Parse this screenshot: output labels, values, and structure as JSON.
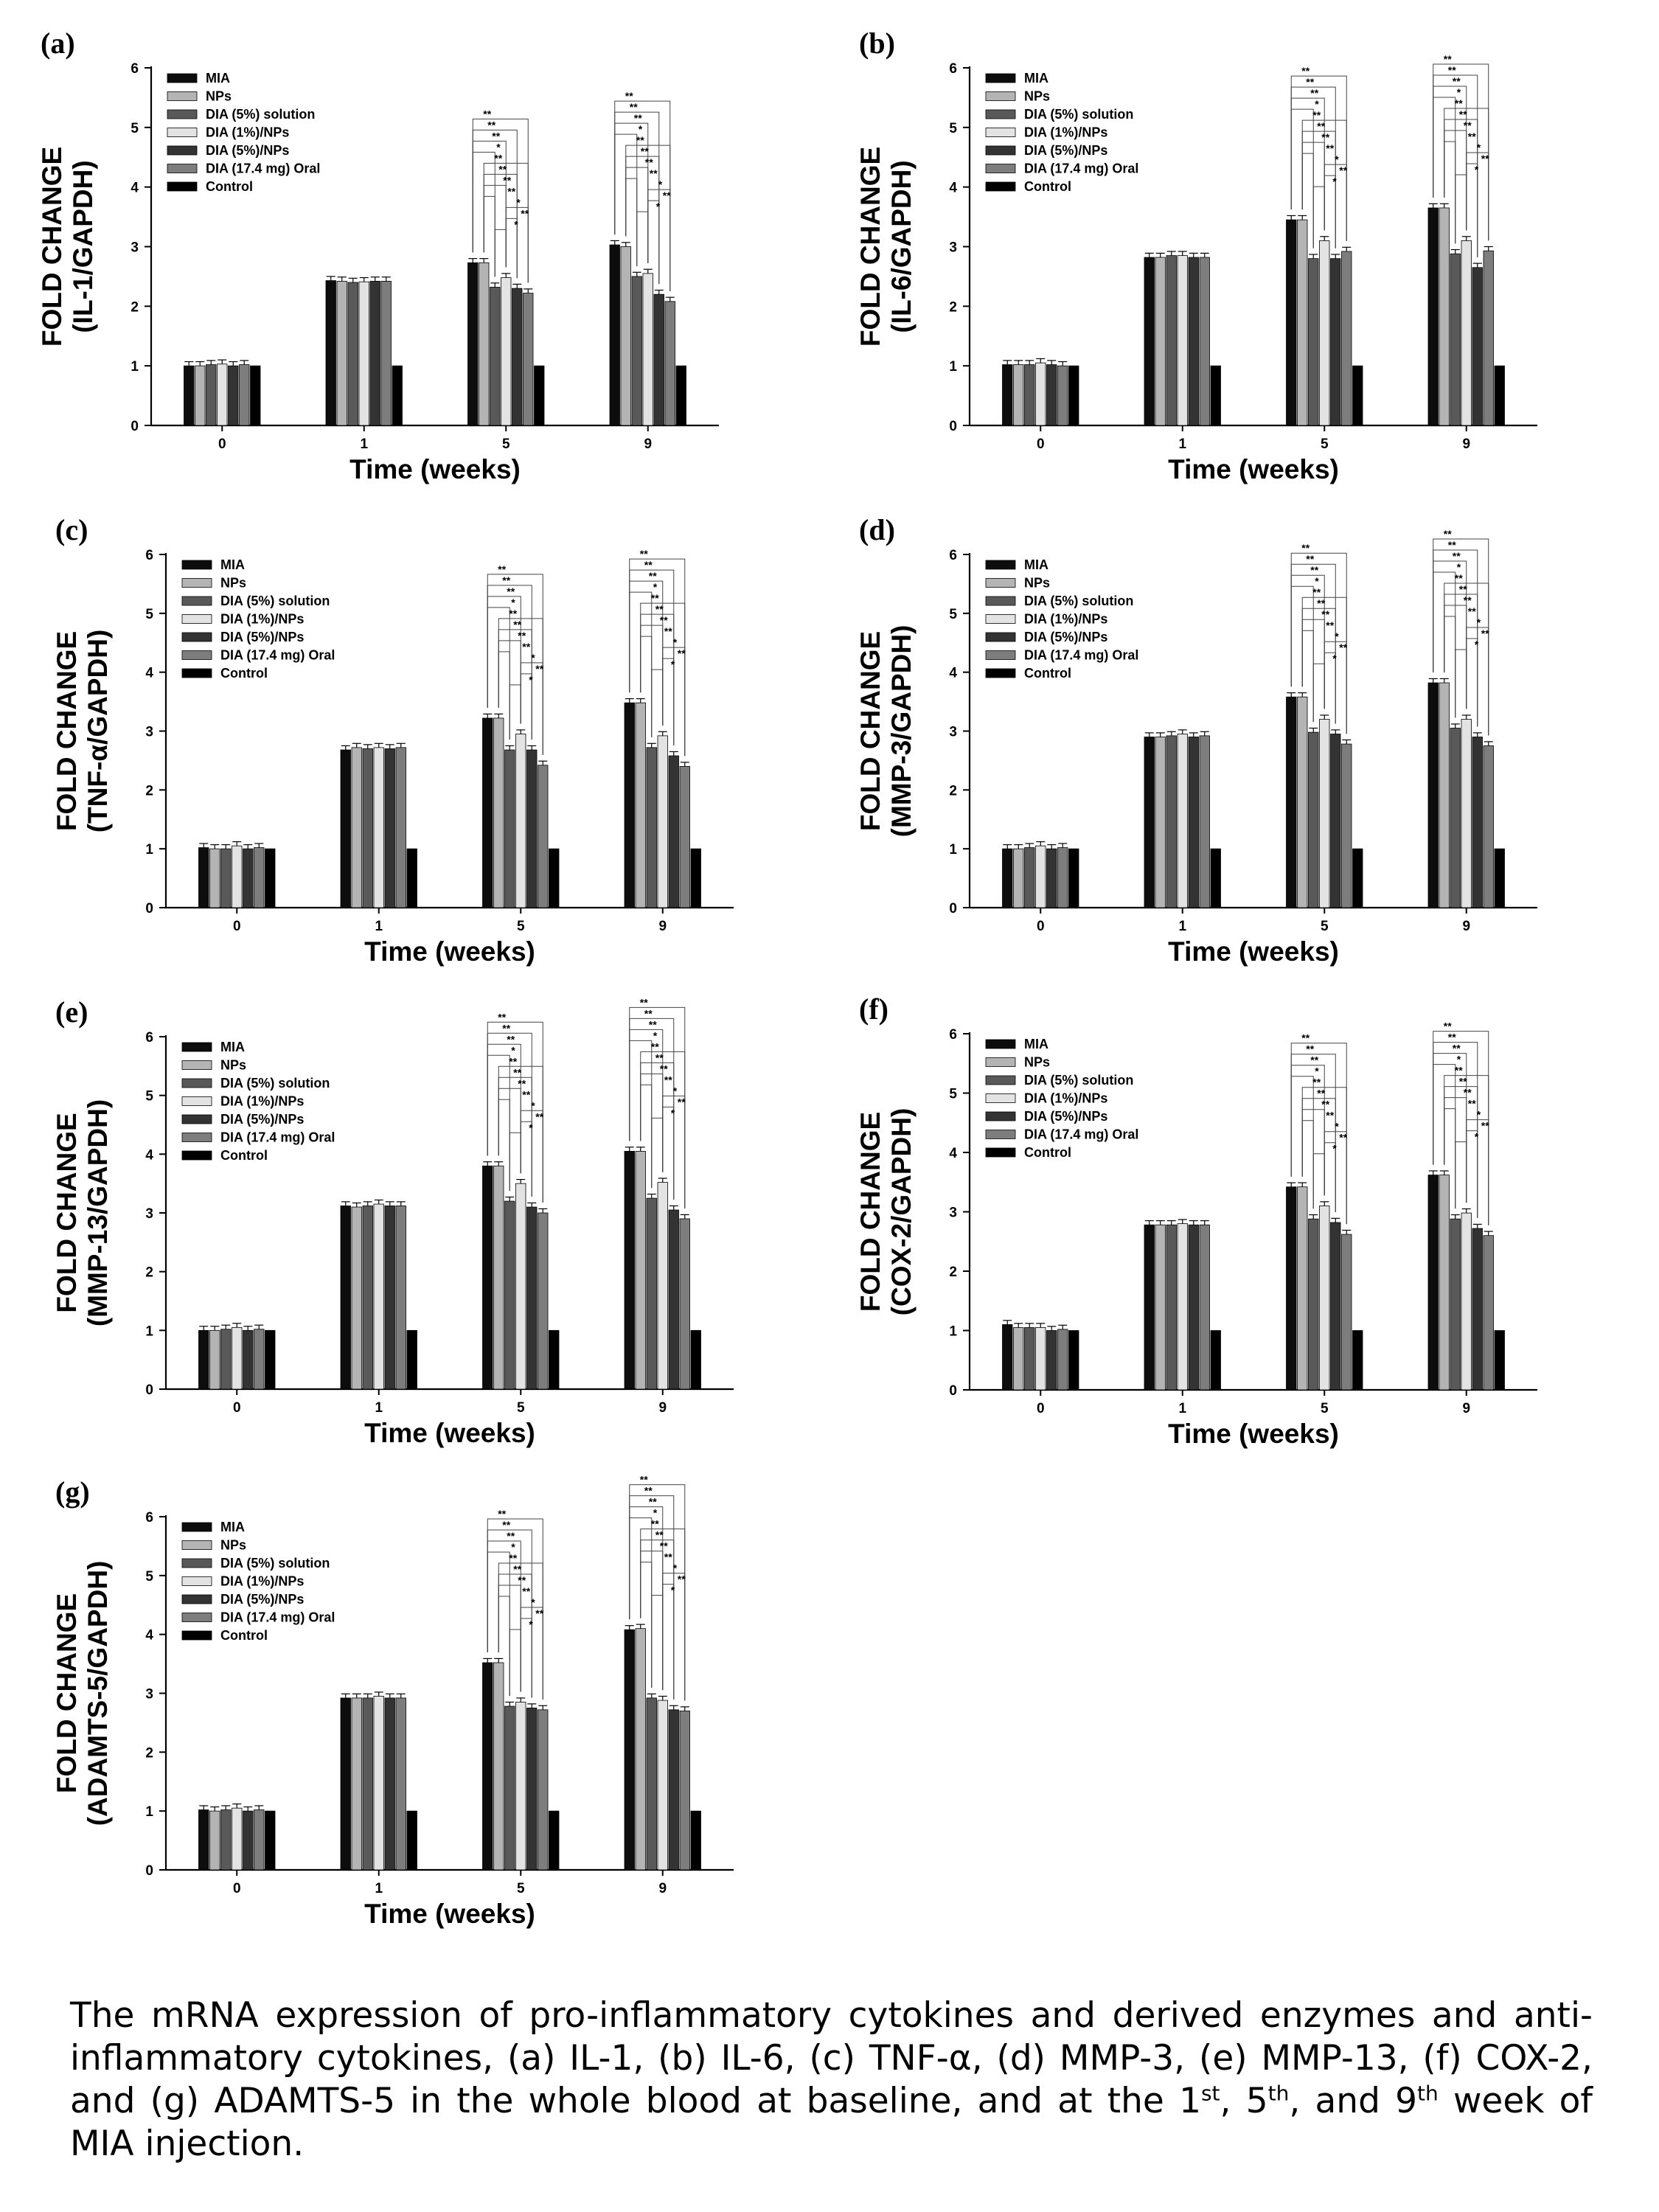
{
  "legend": [
    "MIA",
    "NPs",
    "DIA (5%) solution",
    "DIA (1%)/NPs",
    "DIA (5%)/NPs",
    "DIA (17.4 mg) Oral",
    "Control"
  ],
  "colors": {
    "series": [
      "#0d0d0d",
      "#b4b4b4",
      "#595959",
      "#e3e3e3",
      "#333333",
      "#7d7d7d",
      "#000000"
    ],
    "axis": "#000000"
  },
  "significance_labels": [
    "*",
    "**"
  ],
  "chart_data": [
    {
      "panel": "(a)",
      "type": "bar",
      "ylabel_line1": "FOLD CHANGE",
      "ylabel_line2": "(IL-1/GAPDH)",
      "xlabel": "Time (weeks)",
      "categories": [
        "0",
        "1",
        "5",
        "9"
      ],
      "ylim": [
        0,
        6
      ],
      "yticks": [
        "0",
        "1",
        "2",
        "3",
        "4",
        "5",
        "6"
      ],
      "series": [
        {
          "name": "MIA",
          "values": [
            1.0,
            2.43,
            2.73,
            3.03
          ]
        },
        {
          "name": "NPs",
          "values": [
            1.0,
            2.42,
            2.73,
            3.0
          ]
        },
        {
          "name": "DIA (5%) solution",
          "values": [
            1.02,
            2.4,
            2.32,
            2.5
          ]
        },
        {
          "name": "DIA (1%)/NPs",
          "values": [
            1.03,
            2.41,
            2.48,
            2.55
          ]
        },
        {
          "name": "DIA (5%)/NPs",
          "values": [
            1.0,
            2.42,
            2.3,
            2.2
          ]
        },
        {
          "name": "DIA (17.4 mg) Oral",
          "values": [
            1.02,
            2.42,
            2.22,
            2.08
          ]
        },
        {
          "name": "Control",
          "values": [
            1.0,
            1.0,
            1.0,
            1.0
          ]
        }
      ]
    },
    {
      "panel": "(b)",
      "type": "bar",
      "ylabel_line1": "FOLD CHANGE",
      "ylabel_line2": "(IL-6/GAPDH)",
      "xlabel": "Time (weeks)",
      "categories": [
        "0",
        "1",
        "5",
        "9"
      ],
      "ylim": [
        0,
        6
      ],
      "yticks": [
        "0",
        "1",
        "2",
        "3",
        "4",
        "5",
        "6"
      ],
      "series": [
        {
          "name": "MIA",
          "values": [
            1.02,
            2.82,
            3.45,
            3.65
          ]
        },
        {
          "name": "NPs",
          "values": [
            1.02,
            2.82,
            3.45,
            3.65
          ]
        },
        {
          "name": "DIA (5%) solution",
          "values": [
            1.02,
            2.85,
            2.8,
            2.88
          ]
        },
        {
          "name": "DIA (1%)/NPs",
          "values": [
            1.05,
            2.85,
            3.1,
            3.1
          ]
        },
        {
          "name": "DIA (5%)/NPs",
          "values": [
            1.02,
            2.82,
            2.8,
            2.65
          ]
        },
        {
          "name": "DIA (17.4 mg) Oral",
          "values": [
            1.0,
            2.82,
            2.92,
            2.93
          ]
        },
        {
          "name": "Control",
          "values": [
            1.0,
            1.0,
            1.0,
            1.0
          ]
        }
      ]
    },
    {
      "panel": "(c)",
      "type": "bar",
      "ylabel_line1": "FOLD CHANGE",
      "ylabel_line2": "(TNF-α/GAPDH)",
      "xlabel": "Time (weeks)",
      "categories": [
        "0",
        "1",
        "5",
        "9"
      ],
      "ylim": [
        0,
        6
      ],
      "yticks": [
        "0",
        "1",
        "2",
        "3",
        "4",
        "5",
        "6"
      ],
      "series": [
        {
          "name": "MIA",
          "values": [
            1.02,
            2.68,
            3.22,
            3.48
          ]
        },
        {
          "name": "NPs",
          "values": [
            1.0,
            2.72,
            3.22,
            3.48
          ]
        },
        {
          "name": "DIA (5%) solution",
          "values": [
            1.0,
            2.7,
            2.68,
            2.72
          ]
        },
        {
          "name": "DIA (1%)/NPs",
          "values": [
            1.05,
            2.72,
            2.95,
            2.92
          ]
        },
        {
          "name": "DIA (5%)/NPs",
          "values": [
            1.0,
            2.7,
            2.68,
            2.58
          ]
        },
        {
          "name": "DIA (17.4 mg) Oral",
          "values": [
            1.02,
            2.72,
            2.42,
            2.4
          ]
        },
        {
          "name": "Control",
          "values": [
            1.0,
            1.0,
            1.0,
            1.0
          ]
        }
      ]
    },
    {
      "panel": "(d)",
      "type": "bar",
      "ylabel_line1": "FOLD CHANGE",
      "ylabel_line2": "(MMP-3/GAPDH)",
      "xlabel": "Time (weeks)",
      "categories": [
        "0",
        "1",
        "5",
        "9"
      ],
      "ylim": [
        0,
        6
      ],
      "yticks": [
        "0",
        "1",
        "2",
        "3",
        "4",
        "5",
        "6"
      ],
      "series": [
        {
          "name": "MIA",
          "values": [
            1.0,
            2.9,
            3.58,
            3.82
          ]
        },
        {
          "name": "NPs",
          "values": [
            1.0,
            2.9,
            3.58,
            3.82
          ]
        },
        {
          "name": "DIA (5%) solution",
          "values": [
            1.02,
            2.92,
            2.98,
            3.05
          ]
        },
        {
          "name": "DIA (1%)/NPs",
          "values": [
            1.05,
            2.95,
            3.2,
            3.2
          ]
        },
        {
          "name": "DIA (5%)/NPs",
          "values": [
            1.0,
            2.9,
            2.95,
            2.9
          ]
        },
        {
          "name": "DIA (17.4 mg) Oral",
          "values": [
            1.02,
            2.92,
            2.78,
            2.75
          ]
        },
        {
          "name": "Control",
          "values": [
            1.0,
            1.0,
            1.0,
            1.0
          ]
        }
      ]
    },
    {
      "panel": "(e)",
      "type": "bar",
      "ylabel_line1": "FOLD CHANGE",
      "ylabel_line2": "(MMP-13/GAPDH)",
      "xlabel": "Time (weeks)",
      "categories": [
        "0",
        "1",
        "5",
        "9"
      ],
      "ylim": [
        0,
        6
      ],
      "yticks": [
        "0",
        "1",
        "2",
        "3",
        "4",
        "5",
        "6"
      ],
      "series": [
        {
          "name": "MIA",
          "values": [
            1.0,
            3.12,
            3.8,
            4.05
          ]
        },
        {
          "name": "NPs",
          "values": [
            1.0,
            3.1,
            3.8,
            4.05
          ]
        },
        {
          "name": "DIA (5%) solution",
          "values": [
            1.02,
            3.12,
            3.2,
            3.25
          ]
        },
        {
          "name": "DIA (1%)/NPs",
          "values": [
            1.05,
            3.15,
            3.5,
            3.52
          ]
        },
        {
          "name": "DIA (5%)/NPs",
          "values": [
            1.0,
            3.12,
            3.1,
            3.05
          ]
        },
        {
          "name": "DIA (17.4 mg) Oral",
          "values": [
            1.02,
            3.12,
            3.0,
            2.9
          ]
        },
        {
          "name": "Control",
          "values": [
            1.0,
            1.0,
            1.0,
            1.0
          ]
        }
      ]
    },
    {
      "panel": "(f)",
      "type": "bar",
      "ylabel_line1": "FOLD CHANGE",
      "ylabel_line2": "(COX-2/GAPDH)",
      "xlabel": "Time (weeks)",
      "categories": [
        "0",
        "1",
        "5",
        "9"
      ],
      "ylim": [
        0,
        6
      ],
      "yticks": [
        "0",
        "1",
        "2",
        "3",
        "4",
        "5",
        "6"
      ],
      "series": [
        {
          "name": "MIA",
          "values": [
            1.1,
            2.78,
            3.42,
            3.62
          ]
        },
        {
          "name": "NPs",
          "values": [
            1.05,
            2.78,
            3.42,
            3.62
          ]
        },
        {
          "name": "DIA (5%) solution",
          "values": [
            1.05,
            2.78,
            2.88,
            2.88
          ]
        },
        {
          "name": "DIA (1%)/NPs",
          "values": [
            1.05,
            2.8,
            3.1,
            2.98
          ]
        },
        {
          "name": "DIA (5%)/NPs",
          "values": [
            1.0,
            2.78,
            2.82,
            2.72
          ]
        },
        {
          "name": "DIA (17.4 mg) Oral",
          "values": [
            1.02,
            2.78,
            2.62,
            2.6
          ]
        },
        {
          "name": "Control",
          "values": [
            1.0,
            1.0,
            1.0,
            1.0
          ]
        }
      ]
    },
    {
      "panel": "(g)",
      "type": "bar",
      "ylabel_line1": "FOLD CHANGE",
      "ylabel_line2": "(ADAMTS-5/GAPDH)",
      "xlabel": "Time (weeks)",
      "categories": [
        "0",
        "1",
        "5",
        "9"
      ],
      "ylim": [
        0,
        6
      ],
      "yticks": [
        "0",
        "1",
        "2",
        "3",
        "4",
        "5",
        "6"
      ],
      "series": [
        {
          "name": "MIA",
          "values": [
            1.02,
            2.92,
            3.52,
            4.08
          ]
        },
        {
          "name": "NPs",
          "values": [
            1.0,
            2.92,
            3.52,
            4.1
          ]
        },
        {
          "name": "DIA (5%) solution",
          "values": [
            1.02,
            2.92,
            2.78,
            2.92
          ]
        },
        {
          "name": "DIA (1%)/NPs",
          "values": [
            1.05,
            2.95,
            2.85,
            2.88
          ]
        },
        {
          "name": "DIA (5%)/NPs",
          "values": [
            1.0,
            2.92,
            2.75,
            2.72
          ]
        },
        {
          "name": "DIA (17.4 mg) Oral",
          "values": [
            1.02,
            2.92,
            2.72,
            2.7
          ]
        },
        {
          "name": "Control",
          "values": [
            1.0,
            1.0,
            1.0,
            1.0
          ]
        }
      ]
    }
  ],
  "caption": {
    "part1": "The mRNA expression of pro-inflammatory cytokines and derived enzymes and anti-inflammatory cytokines, (a) IL-1, (b) IL-6, (c) TNF-α, (d) MMP-3, (e) MMP-13, (f) COX-2, and (g) ADAMTS-5 in the whole blood at baseline, and at the 1",
    "sup1": "st",
    "part2": ", 5",
    "sup2": "th",
    "part3": ", and 9",
    "sup3": "th",
    "part4": " week of MIA injection."
  }
}
